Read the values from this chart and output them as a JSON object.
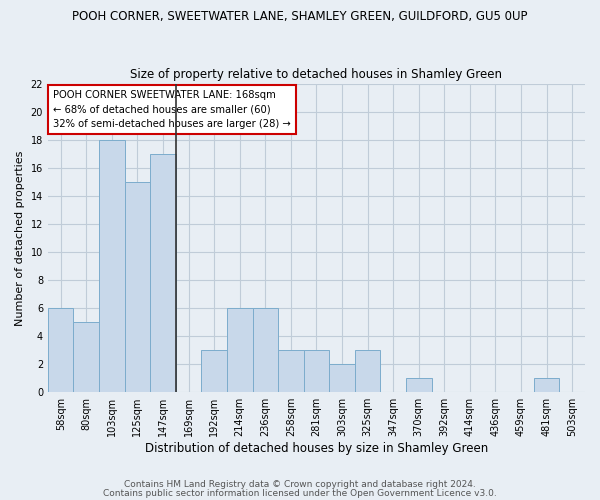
{
  "title": "POOH CORNER, SWEETWATER LANE, SHAMLEY GREEN, GUILDFORD, GU5 0UP",
  "subtitle": "Size of property relative to detached houses in Shamley Green",
  "xlabel": "Distribution of detached houses by size in Shamley Green",
  "ylabel": "Number of detached properties",
  "categories": [
    "58sqm",
    "80sqm",
    "103sqm",
    "125sqm",
    "147sqm",
    "169sqm",
    "192sqm",
    "214sqm",
    "236sqm",
    "258sqm",
    "281sqm",
    "303sqm",
    "325sqm",
    "347sqm",
    "370sqm",
    "392sqm",
    "414sqm",
    "436sqm",
    "459sqm",
    "481sqm",
    "503sqm"
  ],
  "values": [
    6,
    5,
    18,
    15,
    17,
    0,
    3,
    6,
    6,
    3,
    3,
    2,
    3,
    0,
    1,
    0,
    0,
    0,
    0,
    1,
    0
  ],
  "bar_color": "#c8d8ea",
  "bar_edge_color": "#7caccc",
  "highlight_index": 5,
  "highlight_line_color": "#333333",
  "annotation_text": "POOH CORNER SWEETWATER LANE: 168sqm\n← 68% of detached houses are smaller (60)\n32% of semi-detached houses are larger (28) →",
  "annotation_box_color": "#ffffff",
  "annotation_box_edge": "#cc0000",
  "ylim": [
    0,
    22
  ],
  "yticks": [
    0,
    2,
    4,
    6,
    8,
    10,
    12,
    14,
    16,
    18,
    20,
    22
  ],
  "footer_line1": "Contains HM Land Registry data © Crown copyright and database right 2024.",
  "footer_line2": "Contains public sector information licensed under the Open Government Licence v3.0.",
  "background_color": "#e8eef4",
  "plot_background": "#e8eef4",
  "grid_color": "#c0ccd8",
  "title_fontsize": 8.5,
  "subtitle_fontsize": 8.5,
  "xlabel_fontsize": 8.5,
  "ylabel_fontsize": 8,
  "tick_fontsize": 7,
  "footer_fontsize": 6.5
}
